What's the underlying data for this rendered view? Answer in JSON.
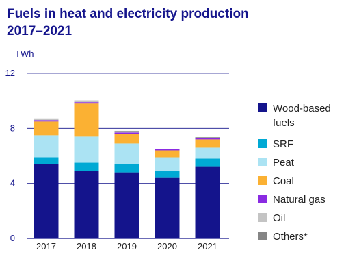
{
  "chart_data": {
    "type": "bar",
    "stacked": true,
    "title_lines": [
      "Fuels in heat and electricity production",
      "2017–2021"
    ],
    "ylabel": "TWh",
    "xlabel": "",
    "ylim": [
      0,
      12
    ],
    "yticks": [
      0,
      4,
      8,
      12
    ],
    "grid": true,
    "legend_position": "right",
    "categories": [
      "2017",
      "2018",
      "2019",
      "2020",
      "2021"
    ],
    "series": [
      {
        "name": "Wood-based fuels",
        "color": "#14148c",
        "values": [
          5.4,
          4.9,
          4.8,
          4.4,
          5.2
        ]
      },
      {
        "name": "SRF",
        "color": "#00a9d4",
        "values": [
          0.5,
          0.6,
          0.6,
          0.5,
          0.6
        ]
      },
      {
        "name": "Peat",
        "color": "#abe3f3",
        "values": [
          1.6,
          1.9,
          1.5,
          1.0,
          0.8
        ]
      },
      {
        "name": "Coal",
        "color": "#fbb133",
        "values": [
          1.0,
          2.4,
          0.7,
          0.5,
          0.6
        ]
      },
      {
        "name": "Natural gas",
        "color": "#8a2be2",
        "values": [
          0.1,
          0.1,
          0.1,
          0.1,
          0.1
        ]
      },
      {
        "name": "Oil",
        "color": "#c4c4c4",
        "values": [
          0.1,
          0.1,
          0.1,
          0.0,
          0.05
        ]
      },
      {
        "name": "Others*",
        "color": "#858585",
        "values": [
          0.02,
          0.02,
          0.02,
          0.02,
          0.02
        ]
      }
    ]
  }
}
